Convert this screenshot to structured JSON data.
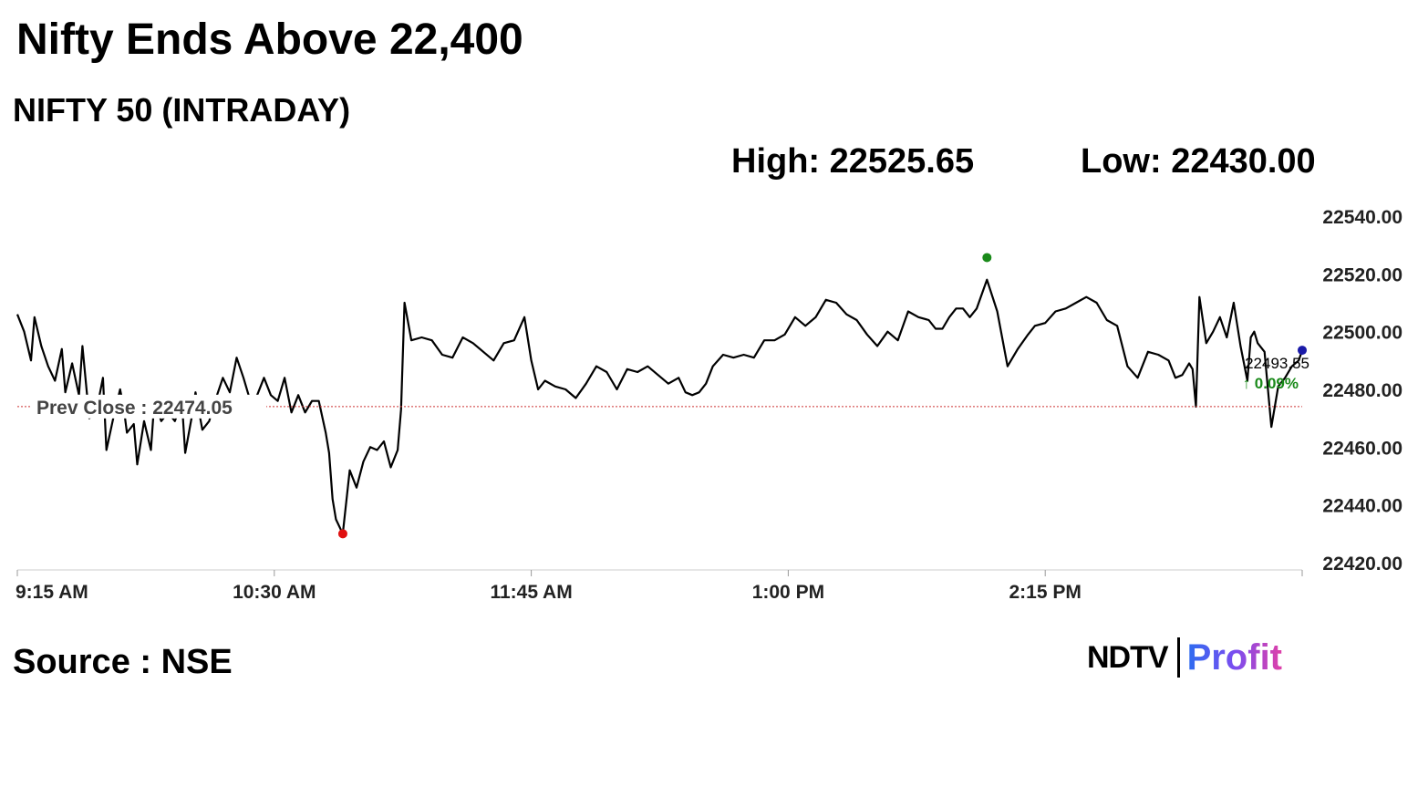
{
  "title": "Nifty Ends Above 22,400",
  "subtitle": "NIFTY 50 (INTRADAY)",
  "high_label": "High: 22525.65",
  "low_label": "Low: 22430.00",
  "source": "Source : NSE",
  "logo": {
    "ndtv": "NDTV",
    "profit": "Profit"
  },
  "prev_close_label": "Prev Close : 22474.05",
  "last_value_label": "22493.55",
  "last_change_label": "↑ 0.09%",
  "colors": {
    "line": "#000000",
    "prev_close": "#cc3333",
    "high_marker": "#1a8a1a",
    "low_marker": "#e01010",
    "last_marker": "#1a1aa8",
    "change_up": "#1a8a1a",
    "axis": "#cccccc"
  },
  "chart_data": {
    "type": "line",
    "title": "NIFTY 50 (INTRADAY)",
    "xlabel": "",
    "ylabel": "",
    "ylim": [
      22420,
      22540
    ],
    "y_ticks": [
      22540,
      22520,
      22500,
      22480,
      22460,
      22440,
      22420
    ],
    "y_tick_labels": [
      "22540.00",
      "22520.00",
      "22500.00",
      "22480.00",
      "22460.00",
      "22440.00",
      "22420.00"
    ],
    "x_range_minutes": [
      0,
      375
    ],
    "x_tick_minutes": [
      0,
      75,
      150,
      225,
      300
    ],
    "x_tick_labels": [
      "9:15 AM",
      "10:30 AM",
      "11:45 AM",
      "1:00 PM",
      "2:15 PM"
    ],
    "prev_close": 22474.05,
    "high": 22525.65,
    "low": 22430.0,
    "last": 22493.55,
    "change_pct": 0.09,
    "grid": false,
    "series": [
      {
        "x": [
          0,
          2,
          4,
          5,
          7,
          9,
          11,
          13,
          14,
          16,
          18,
          19,
          21,
          23,
          25,
          26,
          28,
          30,
          31,
          32,
          34,
          35,
          37,
          39,
          40,
          42,
          44,
          46,
          48,
          49,
          51,
          52,
          54,
          56,
          58,
          60,
          62,
          64,
          66,
          68,
          70,
          72,
          74,
          76,
          78,
          80,
          82,
          84,
          86,
          88,
          90,
          91,
          92,
          93,
          95,
          97,
          99,
          101,
          103,
          105,
          107,
          109,
          110,
          111,
          112,
          113,
          115,
          118,
          121,
          124,
          127,
          130,
          133,
          136,
          139,
          142,
          145,
          148,
          150,
          152,
          154,
          157,
          160,
          163,
          166,
          169,
          172,
          175,
          178,
          181,
          184,
          187,
          190,
          193,
          195,
          197,
          199,
          201,
          203,
          206,
          209,
          212,
          215,
          218,
          221,
          224,
          227,
          230,
          233,
          236,
          239,
          242,
          245,
          248,
          251,
          254,
          257,
          260,
          263,
          266,
          268,
          270,
          272,
          274,
          276,
          278,
          280,
          283,
          286,
          289,
          292,
          295,
          297,
          300,
          303,
          306,
          309,
          312,
          315,
          318,
          321,
          324,
          327,
          330,
          333,
          336,
          338,
          340,
          342,
          343,
          344,
          345,
          347,
          349,
          351,
          353,
          355,
          357,
          359,
          360,
          361,
          362,
          364,
          366,
          368,
          370,
          372,
          374,
          375
        ],
        "y": [
          22506,
          22500,
          22490,
          22505,
          22495,
          22488,
          22483,
          22494,
          22479,
          22489,
          22478,
          22495,
          22470,
          22472,
          22484,
          22459,
          22470,
          22480,
          22474,
          22465,
          22468,
          22454,
          22469,
          22459,
          22476,
          22469,
          22472,
          22469,
          22476,
          22458,
          22471,
          22479,
          22466,
          22469,
          22477,
          22484,
          22479,
          22491,
          22484,
          22476,
          22478,
          22484,
          22478,
          22476,
          22484,
          22472,
          22478,
          22472,
          22476,
          22476,
          22465,
          22458,
          22442,
          22435,
          22430,
          22452,
          22446,
          22455,
          22460,
          22459,
          22462,
          22453,
          22456,
          22459,
          22473,
          22510,
          22497,
          22498,
          22497,
          22492,
          22491,
          22498,
          22496,
          22493,
          22490,
          22496,
          22497,
          22505,
          22490,
          22480,
          22483,
          22481,
          22480,
          22477,
          22482,
          22488,
          22486,
          22480,
          22487,
          22486,
          22488,
          22485,
          22482,
          22484,
          22479,
          22478,
          22479,
          22482,
          22488,
          22492,
          22491,
          22492,
          22491,
          22497,
          22497,
          22499,
          22505,
          22502,
          22505,
          22511,
          22510,
          22506,
          22504,
          22499,
          22495,
          22500,
          22497,
          22507,
          22505,
          22504,
          22501,
          22501,
          22505,
          22508,
          22508,
          22505,
          22508,
          22518,
          22507,
          22488,
          22494,
          22499,
          22502,
          22503,
          22507,
          22508,
          22510,
          22512,
          22510,
          22504,
          22502,
          22488,
          22484,
          22493,
          22492,
          22490,
          22484,
          22485,
          22489,
          22487,
          22474,
          22512,
          22496,
          22500,
          22505,
          22498,
          22510,
          22495,
          22483,
          22498,
          22500,
          22496,
          22493,
          22467,
          22481,
          22484,
          22488,
          22490,
          22493.55
        ]
      }
    ]
  }
}
